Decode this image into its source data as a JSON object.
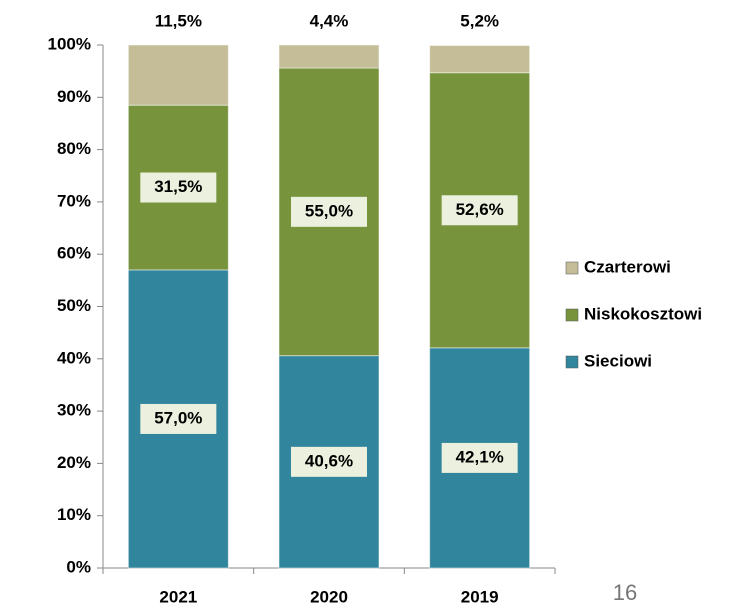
{
  "chart_data": {
    "type": "stacked_bar",
    "categories": [
      "2021",
      "2020",
      "2019"
    ],
    "series": [
      {
        "name": "Sieciowi",
        "color": "#31859c",
        "values": [
          57.0,
          40.6,
          42.1
        ],
        "value_labels": [
          "57,0%",
          "40,6%",
          "42,1%"
        ]
      },
      {
        "name": "Niskokosztowi",
        "color": "#77933c",
        "values": [
          31.5,
          55.0,
          52.6
        ],
        "value_labels": [
          "31,5%",
          "55,0%",
          "52,6%"
        ]
      },
      {
        "name": "Czarterowi",
        "color": "#c4bd97",
        "values": [
          11.5,
          4.4,
          5.2
        ],
        "value_labels": [
          "11,5%",
          "4,4%",
          "5,2%"
        ]
      }
    ],
    "ylim": [
      0,
      100
    ],
    "yticks": [
      {
        "value": 0,
        "label": "0%"
      },
      {
        "value": 10,
        "label": "10%"
      },
      {
        "value": 20,
        "label": "20%"
      },
      {
        "value": 30,
        "label": "30%"
      },
      {
        "value": 40,
        "label": "40%"
      },
      {
        "value": 50,
        "label": "50%"
      },
      {
        "value": 60,
        "label": "60%"
      },
      {
        "value": 70,
        "label": "70%"
      },
      {
        "value": 80,
        "label": "80%"
      },
      {
        "value": 90,
        "label": "90%"
      },
      {
        "value": 100,
        "label": "100%"
      }
    ],
    "legend": "right"
  },
  "page_number": "16"
}
